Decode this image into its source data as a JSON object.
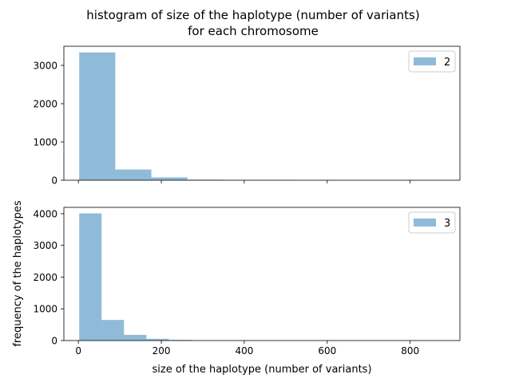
{
  "figure": {
    "title_line1": "histogram of size of the haplotype (number of variants)",
    "title_line2": "for each chromosome",
    "xlabel": "size of the haplotype (number of variants)",
    "ylabel": "frequency of the haplotypes"
  },
  "colors": {
    "bar": "#1f77b4",
    "bar_opacity": 0.5,
    "axis": "#000000",
    "background": "#ffffff"
  },
  "chart_data": [
    {
      "type": "bar",
      "subtype": "histogram",
      "xlim": [
        -35,
        920
      ],
      "ylim": [
        0,
        3500
      ],
      "xticks": [
        0,
        200,
        400,
        600,
        800
      ],
      "xtick_labels": [
        "",
        "",
        "",
        "",
        ""
      ],
      "yticks": [
        0,
        1000,
        2000,
        3000
      ],
      "ytick_labels": [
        "0",
        "1000",
        "2000",
        "3000"
      ],
      "bin_edges": [
        2,
        89,
        176,
        263,
        350,
        437,
        524
      ],
      "values": [
        3340,
        280,
        75,
        15,
        8,
        4
      ],
      "series": [
        {
          "name": "2"
        }
      ],
      "legend_position": "upper right",
      "grid": false
    },
    {
      "type": "bar",
      "subtype": "histogram",
      "xlim": [
        -35,
        920
      ],
      "ylim": [
        0,
        4200
      ],
      "xticks": [
        0,
        200,
        400,
        600,
        800
      ],
      "xtick_labels": [
        "0",
        "200",
        "400",
        "600",
        "800"
      ],
      "yticks": [
        0,
        1000,
        2000,
        3000,
        4000
      ],
      "ytick_labels": [
        "0",
        "1000",
        "2000",
        "3000",
        "4000"
      ],
      "bin_edges": [
        2,
        56,
        110,
        164,
        218,
        272
      ],
      "values": [
        4010,
        650,
        180,
        55,
        20
      ],
      "series": [
        {
          "name": "3"
        }
      ],
      "legend_position": "upper right",
      "grid": false
    }
  ]
}
